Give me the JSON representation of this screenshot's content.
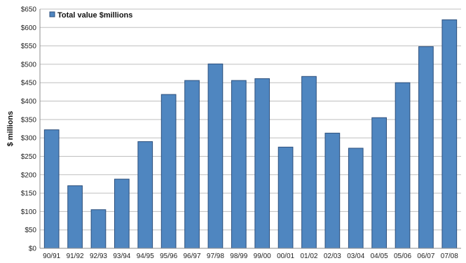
{
  "chart_data": {
    "type": "bar",
    "categories": [
      "90/91",
      "91/92",
      "92/93",
      "93/94",
      "94/95",
      "95/96",
      "96/97",
      "97/98",
      "98/99",
      "99/00",
      "00/01",
      "01/02",
      "02/03",
      "03/04",
      "04/05",
      "05/06",
      "06/07",
      "07/08"
    ],
    "series": [
      {
        "name": "Total value $millions",
        "values": [
          322,
          170,
          105,
          188,
          290,
          418,
          456,
          501,
          456,
          461,
          275,
          467,
          313,
          272,
          355,
          450,
          548,
          621
        ]
      }
    ],
    "ylabel": "$ millions",
    "ylim": [
      0,
      650
    ],
    "yticks": [
      0,
      50,
      100,
      150,
      200,
      250,
      300,
      350,
      400,
      450,
      500,
      550,
      600,
      650
    ],
    "ytick_labels": [
      "$0",
      "$50",
      "$100",
      "$150",
      "$200",
      "$250",
      "$300",
      "$350",
      "$400",
      "$450",
      "$500",
      "$550",
      "$600",
      "$650"
    ],
    "grid": true,
    "legend_position": "top-left",
    "colors": {
      "bar": "#4f86c0",
      "bar_edge": "#2c4f7c",
      "grid": "#bfbfbf"
    }
  }
}
